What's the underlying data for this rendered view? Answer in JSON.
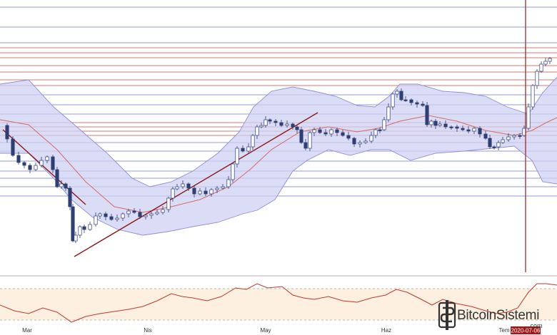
{
  "colors": {
    "background": "#ffffff",
    "band_fill": "#cfd0f2",
    "band_edge": "#8e8fd6",
    "ma_line": "#d46a6a",
    "support_line_red": "#c0392b",
    "support_line_blue": "#5b5fc7",
    "trendline": "#8b1a1a",
    "candle_body": "#2f3f73",
    "osc_fill": "#fdecd9",
    "osc_line": "#c0392b",
    "date_tag": "#a01818"
  },
  "chart_data": {
    "type": "candlestick",
    "x_axis_labels": [
      "Mar",
      "Nis",
      "May",
      "Haz",
      "Tem"
    ],
    "cursor_date": "2020-07-06",
    "indicators": [
      "bollinger-bands",
      "moving-average",
      "oscillator"
    ],
    "grid": false
  },
  "watermark": {
    "brand_main": "BitcoinSistemi",
    "brand_sub": ".com"
  }
}
